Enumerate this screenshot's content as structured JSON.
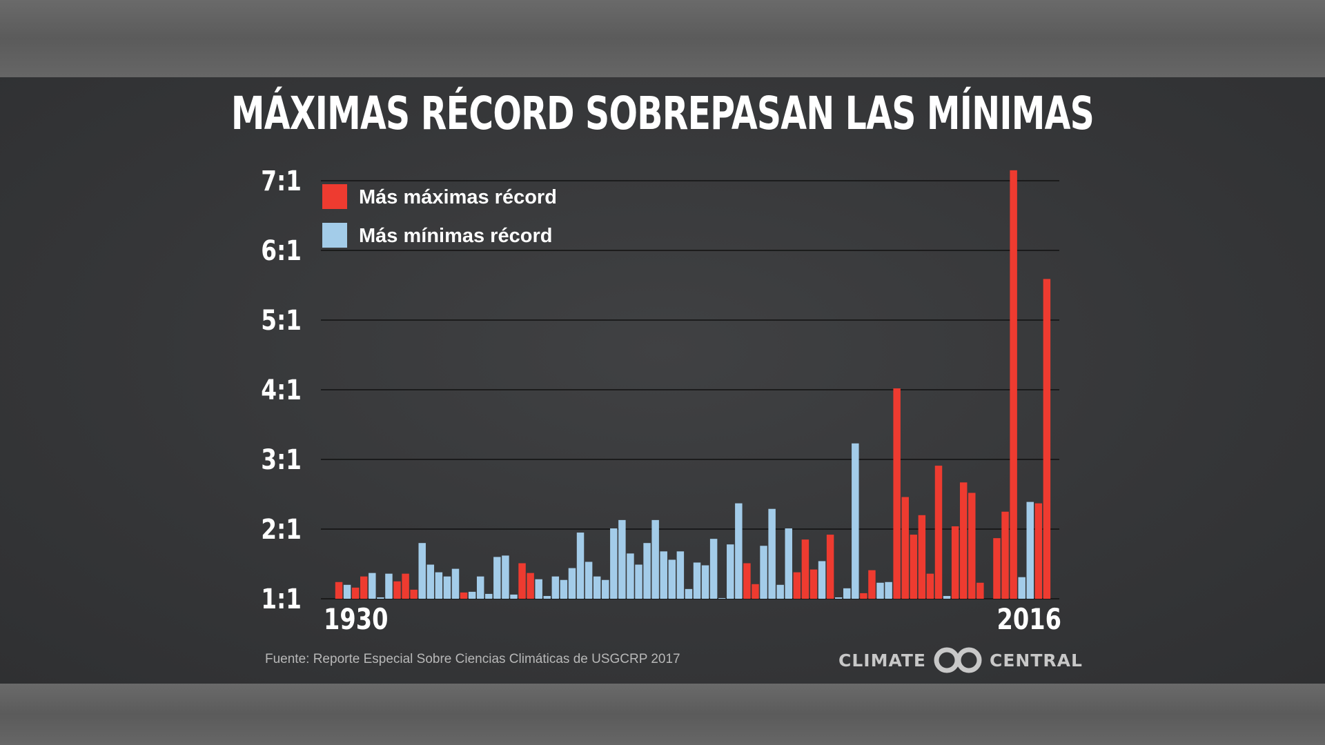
{
  "title": "MÁXIMAS RÉCORD SOBREPASAN LAS MÍNIMAS",
  "source": "Fuente: Reporte Especial Sobre Ciencias Climáticas de USGCRP 2017",
  "logo": {
    "left": "CLIMATE",
    "right": "CENTRAL"
  },
  "colors": {
    "max": "#ee3b30",
    "min": "#a3cce9",
    "background": "#363739",
    "text": "#ffffff"
  },
  "chart_data": {
    "type": "bar",
    "title": "MÁXIMAS RÉCORD SOBREPASAN LAS MÍNIMAS",
    "yticks": [
      "1:1",
      "2:1",
      "3:1",
      "4:1",
      "5:1",
      "6:1",
      "7:1"
    ],
    "ylim": [
      1,
      7
    ],
    "xtick_labels": [
      "1930",
      "2016"
    ],
    "grid": true,
    "legend_position": "top-left",
    "series": [
      {
        "name": "Más máximas récord",
        "color": "#ee3b30"
      },
      {
        "name": "Más mínimas récord",
        "color": "#a3cce9"
      }
    ],
    "categories": [
      "1930",
      "1931",
      "1932",
      "1933",
      "1934",
      "1935",
      "1936",
      "1937",
      "1938",
      "1939",
      "1940",
      "1941",
      "1942",
      "1943",
      "1944",
      "1945",
      "1946",
      "1947",
      "1948",
      "1949",
      "1950",
      "1951",
      "1952",
      "1953",
      "1954",
      "1955",
      "1956",
      "1957",
      "1958",
      "1959",
      "1960",
      "1961",
      "1962",
      "1963",
      "1964",
      "1965",
      "1966",
      "1967",
      "1968",
      "1969",
      "1970",
      "1971",
      "1972",
      "1973",
      "1974",
      "1975",
      "1976",
      "1977",
      "1978",
      "1979",
      "1980",
      "1981",
      "1982",
      "1983",
      "1984",
      "1985",
      "1986",
      "1987",
      "1988",
      "1989",
      "1990",
      "1991",
      "1992",
      "1993",
      "1994",
      "1995",
      "1996",
      "1997",
      "1998",
      "1999",
      "2000",
      "2001",
      "2002",
      "2003",
      "2004",
      "2005",
      "2006",
      "2007",
      "2008",
      "2009",
      "2010",
      "2011",
      "2012",
      "2013",
      "2014",
      "2015",
      "2016"
    ],
    "values": [
      1.24,
      1.2,
      1.16,
      1.32,
      1.37,
      1.02,
      1.36,
      1.25,
      1.36,
      1.13,
      1.8,
      1.49,
      1.38,
      1.32,
      1.43,
      1.09,
      1.1,
      1.32,
      1.07,
      1.6,
      1.62,
      1.06,
      1.51,
      1.37,
      1.28,
      1.04,
      1.32,
      1.27,
      1.44,
      1.95,
      1.53,
      1.32,
      1.27,
      2.01,
      2.13,
      1.65,
      1.49,
      1.8,
      2.13,
      1.68,
      1.56,
      1.68,
      1.14,
      1.52,
      1.48,
      1.86,
      1.01,
      1.78,
      2.37,
      1.51,
      1.21,
      1.76,
      2.29,
      1.2,
      2.01,
      1.38,
      1.85,
      1.42,
      1.54,
      1.92,
      1.02,
      1.15,
      3.23,
      1.08,
      1.41,
      1.23,
      1.24,
      4.02,
      2.46,
      1.92,
      2.2,
      1.36,
      2.91,
      1.04,
      2.04,
      2.67,
      2.52,
      1.23,
      1.0,
      1.87,
      2.25,
      7.15,
      1.31,
      2.39,
      2.37,
      5.59,
      1.0
    ],
    "winner": [
      "max",
      "min",
      "max",
      "max",
      "min",
      "min",
      "min",
      "max",
      "max",
      "max",
      "min",
      "min",
      "min",
      "min",
      "min",
      "max",
      "min",
      "min",
      "min",
      "min",
      "min",
      "min",
      "max",
      "max",
      "min",
      "min",
      "min",
      "min",
      "min",
      "min",
      "min",
      "min",
      "min",
      "min",
      "min",
      "min",
      "min",
      "min",
      "min",
      "min",
      "min",
      "min",
      "min",
      "min",
      "min",
      "min",
      "min",
      "min",
      "min",
      "max",
      "max",
      "min",
      "min",
      "min",
      "min",
      "max",
      "max",
      "max",
      "min",
      "max",
      "min",
      "min",
      "min",
      "max",
      "max",
      "min",
      "min",
      "max",
      "max",
      "max",
      "max",
      "max",
      "max",
      "min",
      "max",
      "max",
      "max",
      "max",
      "max",
      "max",
      "max",
      "max",
      "min",
      "min",
      "max",
      "max",
      "max"
    ]
  }
}
